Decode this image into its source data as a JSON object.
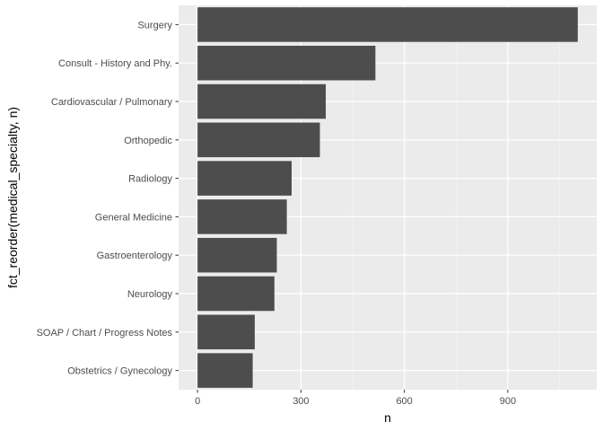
{
  "chart_data": {
    "type": "bar",
    "orientation": "horizontal",
    "categories": [
      "Surgery",
      "Consult - History and Phy.",
      "Cardiovascular / Pulmonary",
      "Orthopedic",
      "Radiology",
      "General Medicine",
      "Gastroenterology",
      "Neurology",
      "SOAP / Chart / Progress Notes",
      "Obstetrics / Gynecology"
    ],
    "values": [
      1103,
      516,
      372,
      355,
      273,
      259,
      230,
      223,
      166,
      160
    ],
    "xlabel": "n",
    "ylabel": "fct_reorder(medical_specialty, n)",
    "xlim": [
      -55,
      1158
    ],
    "x_ticks": [
      0,
      300,
      600,
      900
    ],
    "x_tick_labels": [
      "0",
      "300",
      "600",
      "900"
    ],
    "grid": true,
    "colors": {
      "bar": "#4d4d4d",
      "panel": "#ebebeb",
      "grid_major": "#ffffff",
      "grid_minor": "#f5f5f5"
    }
  }
}
